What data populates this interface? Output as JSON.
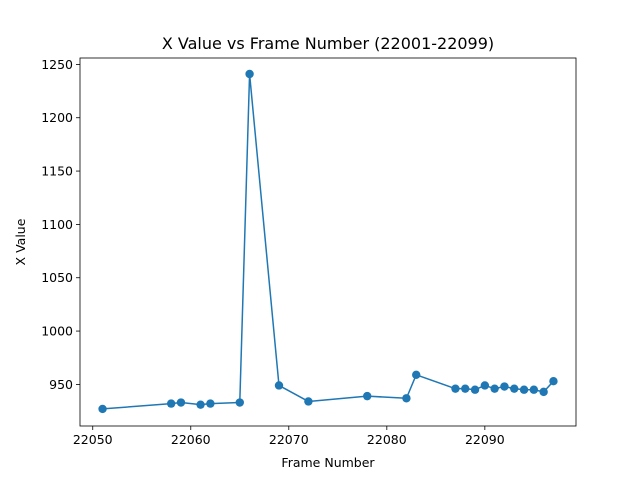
{
  "chart_data": {
    "type": "line",
    "title": "X Value vs Frame Number (22001-22099)",
    "xlabel": "Frame Number",
    "ylabel": "X Value",
    "xlim": [
      22048.7,
      22099.3
    ],
    "ylim": [
      911,
      1256
    ],
    "xticks": [
      22050,
      22060,
      22070,
      22080,
      22090
    ],
    "yticks": [
      950,
      1000,
      1050,
      1100,
      1150,
      1200,
      1250
    ],
    "grid": false,
    "series": [
      {
        "color": "#1f77b4",
        "marker": "circle",
        "x": [
          22051,
          22058,
          22059,
          22061,
          22062,
          22065,
          22066,
          22069,
          22072,
          22078,
          22082,
          22083,
          22087,
          22088,
          22089,
          22090,
          22091,
          22092,
          22093,
          22094,
          22095,
          22096,
          22097
        ],
        "y": [
          927,
          932,
          933,
          931,
          932,
          933,
          1241,
          949,
          934,
          939,
          937,
          959,
          946,
          946,
          945,
          949,
          946,
          948,
          946,
          945,
          945,
          943,
          953
        ]
      }
    ]
  }
}
